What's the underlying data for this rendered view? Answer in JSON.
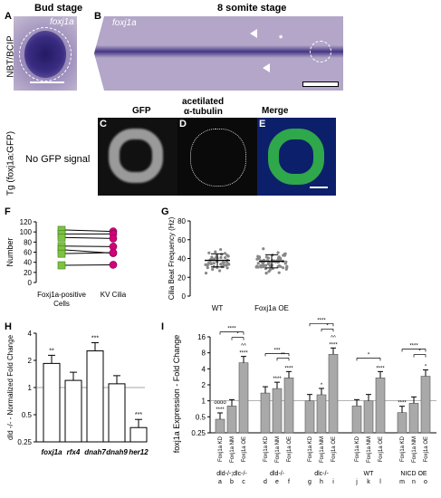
{
  "top": {
    "bud_stage": "Bud stage",
    "somite_stage": "8 somite stage",
    "row_label_a": "NBT/BCIP",
    "gene_a": "foxj1a",
    "gene_b": "foxj1a",
    "tg_label": "Tg (foxj1a:GFP)",
    "no_gfp": "No GFP signal",
    "gfp": "GFP",
    "tubulin_line1": "acetilated",
    "tubulin_line2": "α-tubulin",
    "merge": "Merge",
    "star": "*"
  },
  "panel_labels": [
    "A",
    "B",
    "C",
    "D",
    "E",
    "F",
    "G",
    "H",
    "I"
  ],
  "colors": {
    "green": "#7fc241",
    "magenta": "#d4007a",
    "stain_bg": "#c9bdd6",
    "stain_dark": "#3f2f7c"
  },
  "chart_data": [
    {
      "panel": "F",
      "type": "line",
      "ylabel": "Number",
      "categories": [
        "Foxj1a-positive Cells",
        "KV Cilia"
      ],
      "ylim": [
        0,
        120
      ],
      "yticks": [
        0,
        20,
        40,
        60,
        80,
        100,
        120
      ],
      "pairs": [
        [
          104,
          101
        ],
        [
          96,
          96
        ],
        [
          89,
          87
        ],
        [
          72,
          71
        ],
        [
          65,
          58
        ],
        [
          57,
          59
        ],
        [
          34,
          35
        ]
      ]
    },
    {
      "panel": "G",
      "type": "scatter",
      "ylabel": "Cilia Beat Frequency (Hz)",
      "categories": [
        "WT",
        "Foxj1a OE"
      ],
      "ylim": [
        0,
        80
      ],
      "yticks": [
        0,
        20,
        40,
        60,
        80
      ],
      "means": [
        38,
        37
      ],
      "sd": [
        7,
        7
      ]
    },
    {
      "panel": "H",
      "type": "bar",
      "ylabel": "dld -/- - Normalized Fold Change",
      "categories": [
        "foxj1a",
        "rfx4",
        "dnah7",
        "dnah9",
        "her12"
      ],
      "values": [
        1.85,
        1.2,
        2.55,
        1.1,
        0.36
      ],
      "sig": [
        "**",
        "",
        "***",
        "",
        "***"
      ],
      "yscale": "log2",
      "yticks": [
        "0.25",
        "0.5",
        "1",
        "2",
        "4"
      ]
    },
    {
      "panel": "I",
      "type": "bar",
      "ylabel": "foxj1a Expression - Fold Change",
      "yscale": "log2",
      "yticks": [
        "0.25",
        "0.5",
        "1",
        "2",
        "4",
        "8",
        "16"
      ],
      "bar_labels": [
        "Foxj1a KD",
        "Foxj1a NM",
        "Foxj1a OE",
        "Foxj1a KD",
        "Foxj1a NM",
        "Foxj1a OE",
        "Foxj1a KD",
        "Foxj1a NM",
        "Foxj1a OE",
        "Foxj1a KD",
        "Foxj1a NM",
        "Foxj1a OE",
        "Foxj1a KD",
        "Foxj1a NM",
        "Foxj1a OE"
      ],
      "letters": [
        "a",
        "b",
        "c",
        "d",
        "e",
        "f",
        "g",
        "h",
        "i",
        "j",
        "k",
        "l",
        "m",
        "n",
        "o"
      ],
      "groups": [
        "dld-/-;dlc-/-",
        "dld-/-",
        "dlc-/-",
        "WT",
        "NICD OE"
      ],
      "values": [
        0.45,
        0.8,
        5.2,
        1.4,
        1.7,
        2.7,
        1.0,
        1.3,
        7.5,
        0.8,
        1.0,
        2.7,
        0.6,
        0.9,
        2.9
      ],
      "sig": [
        "****",
        "",
        "****",
        "",
        "****",
        "****",
        "",
        "*",
        "****",
        "",
        "",
        "****",
        "****",
        "",
        "*"
      ],
      "sig_extra": [
        "oooo",
        "",
        "^^",
        "",
        "",
        "",
        "",
        "",
        "^^",
        "",
        "",
        "",
        "",
        "",
        ""
      ]
    }
  ]
}
